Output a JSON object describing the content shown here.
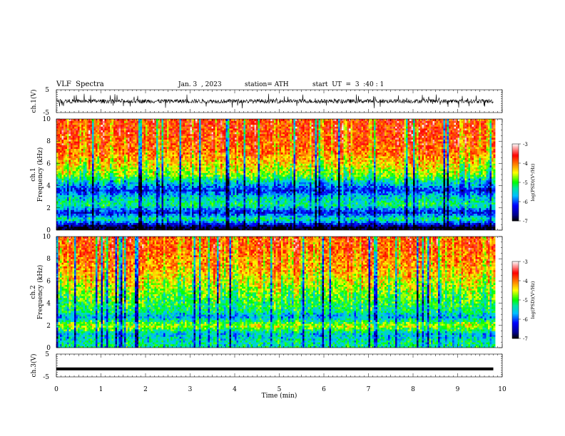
{
  "header": {
    "title": "VLF  Spectra",
    "date": "Jan. 3  , 2023",
    "station": "station= ATH",
    "start": "start  UT  =  3  :40 : 1"
  },
  "chart_data": [
    {
      "type": "line",
      "panel": "ch.1 waveform",
      "ylabel": "ch.1(V)",
      "yticks": [
        "5",
        "-5"
      ],
      "ylim": [
        -5,
        5
      ],
      "xlim": [
        0,
        10
      ],
      "x_coverage": [
        0,
        9.8
      ],
      "trace_amplitude_approx": 1.5,
      "color": "#000000"
    },
    {
      "type": "heatmap",
      "panel": "ch.1 spectrogram",
      "ylabel_top": "ch.1",
      "ylabel": "Frequency  (kHz)",
      "yticks": [
        "10",
        "8",
        "6",
        "4",
        "2",
        "0"
      ],
      "ylim": [
        0,
        10
      ],
      "xlim": [
        0,
        10
      ],
      "x_coverage": [
        0,
        9.8
      ],
      "colorbar": {
        "label": "log(PSD)(V²/Hz)",
        "ticks": [
          "-3",
          "-4",
          "-5",
          "-6",
          "-7"
        ],
        "range": [
          -7,
          -3
        ],
        "colors": [
          "#000000",
          "#00008b",
          "#0000ff",
          "#00bfff",
          "#00e5a0",
          "#00ff00",
          "#ffff00",
          "#ff8c00",
          "#ff0000",
          "#ffffff"
        ]
      },
      "approx_level_by_freq_kHz": [
        {
          "f": 0.25,
          "level": -7
        },
        {
          "f": 1.0,
          "level": -5.2
        },
        {
          "f": 1.6,
          "level": -6.3
        },
        {
          "f": 2.3,
          "level": -5.2
        },
        {
          "f": 3.0,
          "level": -5.5
        },
        {
          "f": 3.6,
          "level": -6.2
        },
        {
          "f": 5.0,
          "level": -4.8
        },
        {
          "f": 7.0,
          "level": -4.0
        },
        {
          "f": 9.0,
          "level": -3.8
        }
      ]
    },
    {
      "type": "heatmap",
      "panel": "ch.2 spectrogram",
      "ylabel_top": "ch.2",
      "ylabel": "Frequency  (kHz)",
      "yticks": [
        "10",
        "8",
        "6",
        "4",
        "2",
        "0"
      ],
      "ylim": [
        0,
        10
      ],
      "xlim": [
        0,
        10
      ],
      "x_coverage": [
        0,
        9.8
      ],
      "colorbar": {
        "label": "log(PSD)(V²/Hz)",
        "ticks": [
          "-3",
          "-4",
          "-5",
          "-6",
          "-7"
        ],
        "range": [
          -7,
          -3
        ],
        "colors": [
          "#000000",
          "#00008b",
          "#0000ff",
          "#00bfff",
          "#00e5a0",
          "#00ff00",
          "#ffff00",
          "#ff8c00",
          "#ff0000",
          "#ffffff"
        ]
      },
      "approx_level_by_freq_kHz": [
        {
          "f": 0.5,
          "level": -5.3
        },
        {
          "f": 1.2,
          "level": -5.6
        },
        {
          "f": 2.0,
          "level": -4.6
        },
        {
          "f": 2.8,
          "level": -5.7
        },
        {
          "f": 3.3,
          "level": -5.2
        },
        {
          "f": 5.0,
          "level": -4.8
        },
        {
          "f": 7.0,
          "level": -4.2
        },
        {
          "f": 9.0,
          "level": -3.9
        }
      ]
    },
    {
      "type": "line",
      "panel": "ch.3 waveform",
      "ylabel": "ch.3(V)",
      "yticks": [
        "5",
        "-5"
      ],
      "ylim": [
        -5,
        5
      ],
      "xlim": [
        0,
        10
      ],
      "x_coverage": [
        0,
        9.8
      ],
      "trace_level_approx": -1.5,
      "color": "#000000"
    }
  ],
  "xaxis": {
    "label": "Time  (min)",
    "ticks": [
      "0",
      "1",
      "2",
      "3",
      "4",
      "5",
      "6",
      "7",
      "8",
      "9",
      "10"
    ]
  }
}
